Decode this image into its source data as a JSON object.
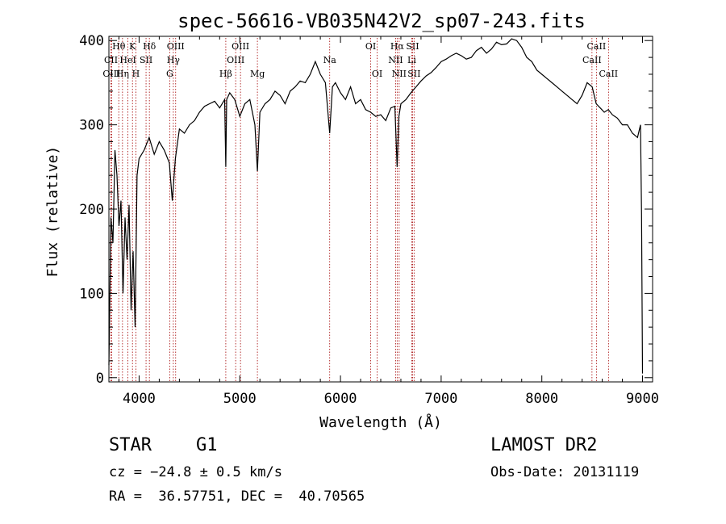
{
  "chart_data": {
    "type": "line",
    "title": "spec-56616-VB035N42V2_sp07-243.fits",
    "xlabel": "Wavelength (Å)",
    "ylabel": "Flux (relative)",
    "xlim": [
      3700,
      9100
    ],
    "ylim": [
      -5,
      405
    ],
    "x_ticks": [
      4000,
      5000,
      6000,
      7000,
      8000,
      9000
    ],
    "y_ticks": [
      0,
      100,
      200,
      300,
      400
    ],
    "grid": false,
    "series": [
      {
        "x": [
          3700,
          3720,
          3740,
          3760,
          3780,
          3800,
          3820,
          3840,
          3860,
          3880,
          3900,
          3920,
          3940,
          3960,
          3980,
          4000,
          4050,
          4100,
          4150,
          4200,
          4250,
          4300,
          4330,
          4360,
          4400,
          4450,
          4500,
          4550,
          4600,
          4650,
          4700,
          4750,
          4800,
          4850,
          4861,
          4870,
          4900,
          4950,
          5000,
          5050,
          5100,
          5150,
          5175,
          5200,
          5250,
          5300,
          5350,
          5400,
          5450,
          5500,
          5550,
          5600,
          5650,
          5700,
          5750,
          5800,
          5850,
          5893,
          5920,
          5950,
          6000,
          6050,
          6100,
          6150,
          6200,
          6250,
          6300,
          6350,
          6400,
          6450,
          6500,
          6540,
          6563,
          6580,
          6600,
          6650,
          6700,
          6750,
          6800,
          6850,
          6900,
          6950,
          7000,
          7050,
          7100,
          7150,
          7200,
          7250,
          7300,
          7350,
          7400,
          7450,
          7500,
          7550,
          7600,
          7650,
          7700,
          7750,
          7800,
          7850,
          7900,
          7950,
          8000,
          8050,
          8100,
          8150,
          8200,
          8250,
          8300,
          8350,
          8400,
          8450,
          8500,
          8540,
          8580,
          8620,
          8660,
          8700,
          8750,
          8800,
          8850,
          8900,
          8950,
          8980,
          8990,
          9000
        ],
        "values": [
          15,
          190,
          160,
          270,
          240,
          180,
          210,
          100,
          190,
          140,
          205,
          80,
          150,
          60,
          240,
          260,
          270,
          285,
          265,
          280,
          270,
          255,
          210,
          260,
          295,
          290,
          300,
          305,
          315,
          322,
          325,
          328,
          320,
          330,
          250,
          330,
          338,
          330,
          310,
          325,
          330,
          300,
          245,
          315,
          325,
          330,
          340,
          335,
          325,
          340,
          345,
          352,
          350,
          360,
          375,
          360,
          350,
          290,
          345,
          350,
          338,
          330,
          345,
          325,
          330,
          318,
          315,
          310,
          312,
          305,
          320,
          322,
          250,
          310,
          325,
          330,
          338,
          345,
          352,
          358,
          362,
          368,
          375,
          378,
          382,
          385,
          382,
          378,
          380,
          388,
          392,
          385,
          390,
          398,
          395,
          396,
          402,
          400,
          392,
          380,
          375,
          365,
          360,
          355,
          350,
          345,
          340,
          335,
          330,
          325,
          335,
          350,
          345,
          325,
          320,
          315,
          318,
          312,
          308,
          300,
          300,
          290,
          285,
          300,
          195,
          5
        ]
      }
    ],
    "line_markers": [
      {
        "name": "Hθ",
        "wl": 3798,
        "row": 0
      },
      {
        "name": "CII",
        "wl": 3720,
        "row": 1
      },
      {
        "name": "OIII",
        "wl": 3727,
        "row": 2
      },
      {
        "name": "HeI",
        "wl": 3889,
        "row": 1
      },
      {
        "name": "Hη",
        "wl": 3835,
        "row": 2
      },
      {
        "name": "K",
        "wl": 3934,
        "row": 0
      },
      {
        "name": "SII",
        "wl": 4069,
        "row": 1
      },
      {
        "name": "H",
        "wl": 3968,
        "row": 2
      },
      {
        "name": "Hδ",
        "wl": 4102,
        "row": 0
      },
      {
        "name": "OIII",
        "wl": 4363,
        "row": 0
      },
      {
        "name": "Hγ",
        "wl": 4340,
        "row": 1
      },
      {
        "name": "G",
        "wl": 4304,
        "row": 2
      },
      {
        "name": "Hβ",
        "wl": 4861,
        "row": 2
      },
      {
        "name": "OIII",
        "wl": 4959,
        "row": 1
      },
      {
        "name": "OIII",
        "wl": 5007,
        "row": 0
      },
      {
        "name": "Mg",
        "wl": 5175,
        "row": 2
      },
      {
        "name": "Na",
        "wl": 5893,
        "row": 1
      },
      {
        "name": "OI",
        "wl": 6300,
        "row": 0
      },
      {
        "name": "OI",
        "wl": 6364,
        "row": 2
      },
      {
        "name": "Hα",
        "wl": 6563,
        "row": 0
      },
      {
        "name": "NII",
        "wl": 6548,
        "row": 1
      },
      {
        "name": "NII",
        "wl": 6583,
        "row": 2
      },
      {
        "name": "SII",
        "wl": 6716,
        "row": 0
      },
      {
        "name": "Li",
        "wl": 6708,
        "row": 1
      },
      {
        "name": "SII",
        "wl": 6731,
        "row": 2
      },
      {
        "name": "CaII",
        "wl": 8542,
        "row": 0
      },
      {
        "name": "CaII",
        "wl": 8498,
        "row": 1
      },
      {
        "name": "CaII",
        "wl": 8662,
        "row": 2
      }
    ]
  },
  "info": {
    "object_class": "STAR",
    "subclass": "G1",
    "survey": "LAMOST DR2",
    "redshift": "cz = −24.8 ± 0.5 km/s",
    "obs_date": "Obs-Date: 20131119",
    "coords": "RA =  36.57751, DEC =  40.70565"
  }
}
